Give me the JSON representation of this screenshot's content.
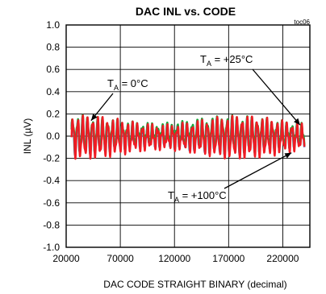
{
  "chart_data": {
    "type": "line",
    "title": "DAC INL vs. CODE",
    "figure_tag": "toc06",
    "xlabel": "DAC CODE STRAIGHT BINARY (decimal)",
    "ylabel": "INL (µV)",
    "xlim": [
      20000,
      245000
    ],
    "ylim": [
      -1.0,
      1.0
    ],
    "xticks": [
      "20000",
      "70000",
      "120000",
      "170000",
      "220000"
    ],
    "xtick_values": [
      20000,
      70000,
      120000,
      170000,
      220000
    ],
    "yticks": [
      "1.0",
      "0.8",
      "0.6",
      "0.4",
      "0.2",
      "0.0",
      "-0.2",
      "-0.4",
      "-0.6",
      "-0.8",
      "-1.0"
    ],
    "ytick_values": [
      1.0,
      0.8,
      0.6,
      0.4,
      0.2,
      0.0,
      -0.2,
      -0.4,
      -0.6,
      -0.8,
      -1.0
    ],
    "grid": true,
    "x_range_data": [
      25000,
      240000
    ],
    "series": [
      {
        "name": "TA = +25°C",
        "color": "#1f6fd6",
        "amplitude": 0.13,
        "offset": 0.0,
        "phase": 0.4
      },
      {
        "name": "TA = +100°C",
        "color": "#19a63a",
        "amplitude": 0.14,
        "offset": 0.01,
        "phase": 0.2
      },
      {
        "name": "TA = 0°C",
        "color": "#ee1c24",
        "amplitude": 0.16,
        "offset": -0.01,
        "phase": 0.0
      }
    ],
    "annotations": [
      {
        "text_main": "T",
        "text_sub": "A",
        "text_rest": " = 0°C",
        "arrow_to": [
          43000,
          0.14
        ]
      },
      {
        "text_main": "T",
        "text_sub": "A",
        "text_rest": " = +25°C",
        "arrow_to": [
          236000,
          0.1
        ]
      },
      {
        "text_main": "T",
        "text_sub": "A",
        "text_rest": " = +100°C",
        "arrow_to": [
          228000,
          -0.15
        ]
      }
    ]
  }
}
